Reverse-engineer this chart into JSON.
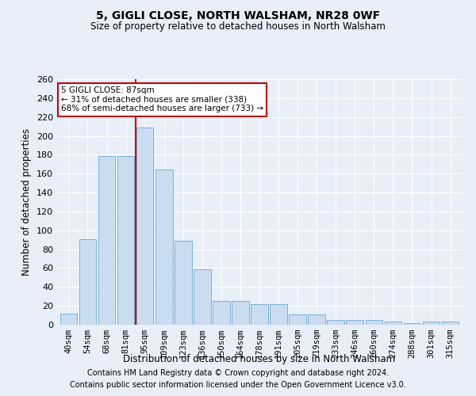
{
  "title1": "5, GIGLI CLOSE, NORTH WALSHAM, NR28 0WF",
  "title2": "Size of property relative to detached houses in North Walsham",
  "xlabel": "Distribution of detached houses by size in North Walsham",
  "ylabel": "Number of detached properties",
  "categories": [
    "40sqm",
    "54sqm",
    "68sqm",
    "81sqm",
    "95sqm",
    "109sqm",
    "123sqm",
    "136sqm",
    "150sqm",
    "164sqm",
    "178sqm",
    "191sqm",
    "205sqm",
    "219sqm",
    "233sqm",
    "246sqm",
    "260sqm",
    "274sqm",
    "288sqm",
    "301sqm",
    "315sqm"
  ],
  "values": [
    12,
    91,
    179,
    179,
    209,
    164,
    89,
    59,
    25,
    25,
    22,
    22,
    11,
    11,
    5,
    5,
    5,
    3,
    2,
    3,
    3
  ],
  "bar_color": "#c9dcf0",
  "bar_edge_color": "#6aaad4",
  "vline_x_index": 3.5,
  "annotation_text_line1": "5 GIGLI CLOSE: 87sqm",
  "annotation_text_line2": "← 31% of detached houses are smaller (338)",
  "annotation_text_line3": "68% of semi-detached houses are larger (733) →",
  "annotation_box_facecolor": "#ffffff",
  "annotation_box_edgecolor": "#cc0000",
  "vline_color": "#cc0000",
  "footnote1": "Contains HM Land Registry data © Crown copyright and database right 2024.",
  "footnote2": "Contains public sector information licensed under the Open Government Licence v3.0.",
  "bg_color": "#e8eff8",
  "plot_bg_color": "#e8eff8",
  "grid_color": "#ffffff",
  "ylim": [
    0,
    260
  ],
  "yticks": [
    0,
    20,
    40,
    60,
    80,
    100,
    120,
    140,
    160,
    180,
    200,
    220,
    240,
    260
  ]
}
